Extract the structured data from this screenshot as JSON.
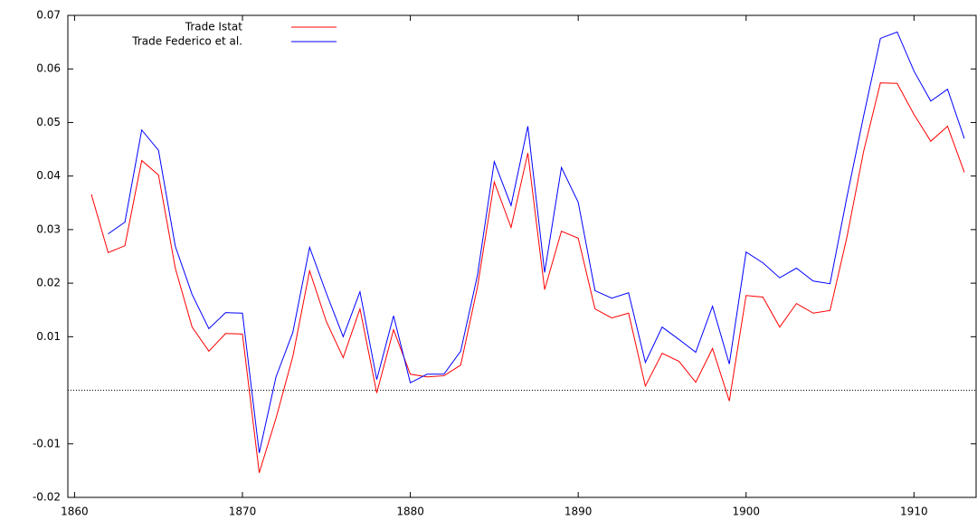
{
  "chart_data": {
    "type": "line",
    "x": [
      1861,
      1862,
      1863,
      1864,
      1865,
      1866,
      1867,
      1868,
      1869,
      1870,
      1871,
      1872,
      1873,
      1874,
      1875,
      1876,
      1877,
      1878,
      1879,
      1880,
      1881,
      1882,
      1883,
      1884,
      1885,
      1886,
      1887,
      1888,
      1889,
      1890,
      1891,
      1892,
      1893,
      1894,
      1895,
      1896,
      1897,
      1898,
      1899,
      1900,
      1901,
      1902,
      1903,
      1904,
      1905,
      1906,
      1907,
      1908,
      1909,
      1910,
      1911,
      1912,
      1913
    ],
    "series": [
      {
        "name": "Trade Istat",
        "color": "#ff0000",
        "values": [
          0.0366,
          0.0257,
          0.027,
          0.0429,
          0.0402,
          0.0228,
          0.0118,
          0.0073,
          0.0106,
          0.0105,
          -0.0154,
          -0.0052,
          0.0063,
          0.0223,
          0.0128,
          0.0061,
          0.0152,
          -0.0005,
          0.0113,
          0.003,
          0.0025,
          0.0027,
          0.0047,
          0.0193,
          0.0389,
          0.0304,
          0.0443,
          0.0188,
          0.0297,
          0.0284,
          0.0152,
          0.0135,
          0.0144,
          0.0008,
          0.0069,
          0.0054,
          0.0015,
          0.0078,
          -0.002,
          0.0177,
          0.0174,
          0.0118,
          0.0162,
          0.0144,
          0.0149,
          0.0285,
          0.0446,
          0.0574,
          0.0573,
          0.0515,
          0.0465,
          0.0493,
          0.0407
        ]
      },
      {
        "name": "Trade Federico et al.",
        "color": "#0000ff",
        "values": [
          null,
          0.0292,
          0.0314,
          0.0486,
          0.0448,
          0.0269,
          0.0179,
          0.0115,
          0.0145,
          0.0144,
          -0.0117,
          0.0025,
          0.0108,
          0.0267,
          0.0181,
          0.01,
          0.0184,
          0.002,
          0.0139,
          0.0014,
          0.003,
          0.003,
          0.0073,
          0.0215,
          0.0427,
          0.0345,
          0.0493,
          0.022,
          0.0416,
          0.0351,
          0.0186,
          0.0172,
          0.0182,
          0.0052,
          0.0118,
          0.0095,
          0.0071,
          0.0157,
          0.0049,
          0.0258,
          0.0238,
          0.021,
          0.0228,
          0.0204,
          0.0199,
          0.036,
          0.0512,
          0.0657,
          0.0669,
          0.0596,
          0.054,
          0.0562,
          0.047
        ]
      }
    ],
    "xlim": [
      1859.6,
      1913.7
    ],
    "xticks": [
      1860,
      1870,
      1880,
      1890,
      1900,
      1910
    ],
    "ylim": [
      -0.02,
      0.07
    ],
    "yticks": [
      -0.02,
      -0.01,
      0.01,
      0.02,
      0.03,
      0.04,
      0.05,
      0.06,
      0.07
    ],
    "zero_line": true,
    "legend": "top-left"
  }
}
